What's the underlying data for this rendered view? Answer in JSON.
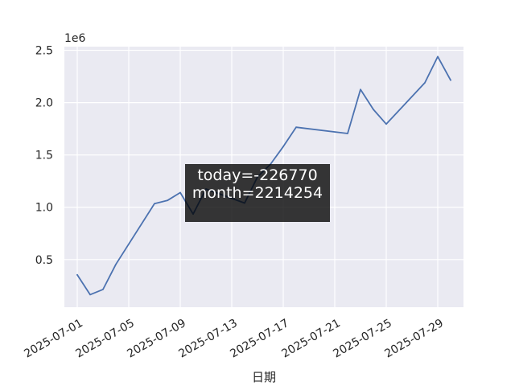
{
  "chart_data": {
    "type": "line",
    "xlabel": "日期",
    "ylabel": "",
    "y_offset_label": "1e6",
    "x": [
      "2025-07-01",
      "2025-07-02",
      "2025-07-03",
      "2025-07-04",
      "2025-07-07",
      "2025-07-08",
      "2025-07-09",
      "2025-07-10",
      "2025-07-11",
      "2025-07-14",
      "2025-07-15",
      "2025-07-16",
      "2025-07-17",
      "2025-07-18",
      "2025-07-22",
      "2025-07-23",
      "2025-07-24",
      "2025-07-25",
      "2025-07-28",
      "2025-07-29",
      "2025-07-30"
    ],
    "values": [
      355000,
      165000,
      215000,
      455000,
      1035000,
      1065000,
      1140000,
      935000,
      1175000,
      1040000,
      1290000,
      1410000,
      1580000,
      1765000,
      1705000,
      2125000,
      1935000,
      1795000,
      2190000,
      2440000,
      2214254
    ],
    "xlim": [
      "2025-06-30",
      "2025-07-31"
    ],
    "ylim": [
      45000,
      2535000
    ],
    "x_ticks": [
      "2025-07-01",
      "2025-07-05",
      "2025-07-09",
      "2025-07-13",
      "2025-07-17",
      "2025-07-21",
      "2025-07-25",
      "2025-07-29"
    ],
    "y_ticks": [
      0.5,
      1.0,
      1.5,
      2.0,
      2.5
    ],
    "y_tick_labels": [
      "0.5",
      "1.0",
      "1.5",
      "2.0",
      "2.5"
    ],
    "annotation": {
      "lines": [
        "today=-226770",
        "month=2214254"
      ]
    },
    "grid": true,
    "colors": {
      "line": "#4c72b0",
      "plot_bg": "#eaeaf2",
      "grid": "#ffffff",
      "annotation_bg": "#000000"
    }
  }
}
